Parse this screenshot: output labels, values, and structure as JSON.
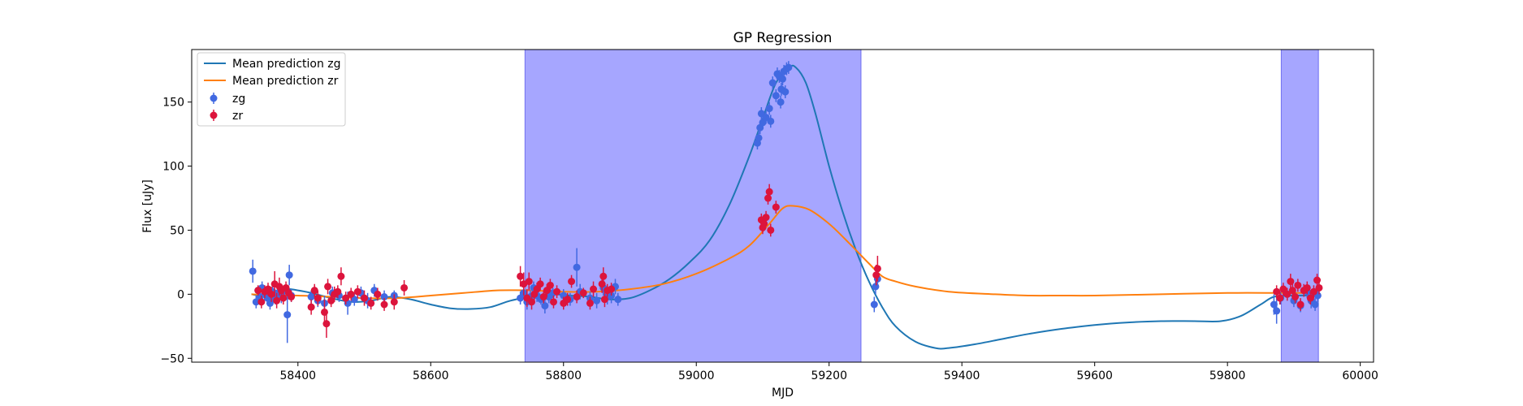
{
  "chart_data": {
    "type": "scatter",
    "title": "GP Regression",
    "xlabel": "MJD",
    "ylabel": "Flux [uJy]",
    "xlim": [
      58240,
      60020
    ],
    "ylim": [
      -53,
      191
    ],
    "xticks": [
      58400,
      58600,
      58800,
      59000,
      59200,
      59400,
      59600,
      59800,
      60000
    ],
    "yticks": [
      -50,
      0,
      50,
      100,
      150
    ],
    "grid": false,
    "legend_position": "upper-left",
    "shaded_regions": [
      {
        "x0": 58742,
        "x1": 59248,
        "color": "#a6a6ff"
      },
      {
        "x0": 59881,
        "x1": 59937,
        "color": "#a6a6ff"
      }
    ],
    "lines": [
      {
        "name": "Mean prediction zg",
        "color": "#1f77b4",
        "points": [
          [
            58330,
            0
          ],
          [
            58350,
            -1
          ],
          [
            58380,
            4
          ],
          [
            58400,
            3
          ],
          [
            58420,
            1
          ],
          [
            58450,
            -3
          ],
          [
            58480,
            -6
          ],
          [
            58510,
            -5
          ],
          [
            58540,
            -2
          ],
          [
            58570,
            -4
          ],
          [
            58600,
            -8
          ],
          [
            58630,
            -11
          ],
          [
            58660,
            -11.5
          ],
          [
            58690,
            -10
          ],
          [
            58720,
            -5
          ],
          [
            58750,
            -2
          ],
          [
            58780,
            0
          ],
          [
            58810,
            -1
          ],
          [
            58840,
            -2
          ],
          [
            58870,
            -4
          ],
          [
            58900,
            -3
          ],
          [
            58930,
            3
          ],
          [
            58960,
            12
          ],
          [
            58990,
            25
          ],
          [
            59020,
            42
          ],
          [
            59050,
            70
          ],
          [
            59080,
            108
          ],
          [
            59100,
            137
          ],
          [
            59120,
            165
          ],
          [
            59140,
            177
          ],
          [
            59150,
            177
          ],
          [
            59165,
            165
          ],
          [
            59180,
            140
          ],
          [
            59200,
            100
          ],
          [
            59220,
            65
          ],
          [
            59240,
            35
          ],
          [
            59260,
            10
          ],
          [
            59280,
            -10
          ],
          [
            59300,
            -25
          ],
          [
            59330,
            -37
          ],
          [
            59360,
            -42
          ],
          [
            59380,
            -42
          ],
          [
            59420,
            -39
          ],
          [
            59460,
            -35
          ],
          [
            59500,
            -31
          ],
          [
            59550,
            -27
          ],
          [
            59600,
            -24
          ],
          [
            59650,
            -22
          ],
          [
            59700,
            -21
          ],
          [
            59750,
            -21
          ],
          [
            59790,
            -21
          ],
          [
            59820,
            -17
          ],
          [
            59850,
            -8
          ],
          [
            59870,
            -2
          ],
          [
            59900,
            -1
          ],
          [
            59935,
            -1
          ]
        ]
      },
      {
        "name": "Mean prediction zr",
        "color": "#ff7f0e",
        "points": [
          [
            58330,
            0
          ],
          [
            58370,
            -1
          ],
          [
            58400,
            -1
          ],
          [
            58450,
            -2
          ],
          [
            58500,
            -3
          ],
          [
            58550,
            -3
          ],
          [
            58600,
            -1
          ],
          [
            58650,
            1
          ],
          [
            58700,
            3
          ],
          [
            58750,
            3
          ],
          [
            58800,
            2
          ],
          [
            58850,
            2
          ],
          [
            58900,
            4
          ],
          [
            58950,
            8
          ],
          [
            59000,
            16
          ],
          [
            59050,
            28
          ],
          [
            59080,
            38
          ],
          [
            59110,
            55
          ],
          [
            59130,
            67
          ],
          [
            59145,
            69
          ],
          [
            59170,
            66
          ],
          [
            59200,
            55
          ],
          [
            59230,
            40
          ],
          [
            59260,
            24
          ],
          [
            59280,
            14
          ],
          [
            59300,
            10
          ],
          [
            59330,
            6
          ],
          [
            59380,
            2
          ],
          [
            59450,
            0
          ],
          [
            59500,
            -1
          ],
          [
            59550,
            -1
          ],
          [
            59600,
            -1
          ],
          [
            59700,
            0
          ],
          [
            59800,
            1
          ],
          [
            59880,
            1
          ],
          [
            59935,
            1
          ]
        ]
      }
    ],
    "series": [
      {
        "name": "zg",
        "color": "#4169e1",
        "points": [
          [
            58332,
            18,
            9
          ],
          [
            58337,
            -6,
            5
          ],
          [
            58340,
            3,
            4
          ],
          [
            58343,
            -2,
            4
          ],
          [
            58346,
            5,
            5
          ],
          [
            58350,
            0,
            4
          ],
          [
            58354,
            -3,
            5
          ],
          [
            58358,
            -7,
            5
          ],
          [
            58362,
            2,
            5
          ],
          [
            58366,
            -4,
            4
          ],
          [
            58370,
            1,
            4
          ],
          [
            58375,
            -2,
            5
          ],
          [
            58380,
            3,
            4
          ],
          [
            58384,
            -16,
            22
          ],
          [
            58387,
            15,
            8
          ],
          [
            58390,
            -1,
            5
          ],
          [
            58420,
            -2,
            5
          ],
          [
            58430,
            -5,
            5
          ],
          [
            58440,
            -7,
            6
          ],
          [
            58452,
            1,
            5
          ],
          [
            58462,
            -1,
            5
          ],
          [
            58475,
            -7,
            9
          ],
          [
            58485,
            -4,
            5
          ],
          [
            58495,
            1,
            5
          ],
          [
            58505,
            -5,
            6
          ],
          [
            58515,
            3,
            5
          ],
          [
            58530,
            -2,
            5
          ],
          [
            58545,
            -1,
            4
          ],
          [
            58735,
            -3,
            5
          ],
          [
            58740,
            1,
            5
          ],
          [
            58745,
            -6,
            6
          ],
          [
            58750,
            -2,
            5
          ],
          [
            58755,
            5,
            5
          ],
          [
            58760,
            -1,
            5
          ],
          [
            58766,
            -4,
            4
          ],
          [
            58772,
            -9,
            6
          ],
          [
            58778,
            -2,
            5
          ],
          [
            58784,
            1,
            4
          ],
          [
            58800,
            -1,
            5
          ],
          [
            58810,
            -4,
            5
          ],
          [
            58820,
            21,
            15
          ],
          [
            58825,
            2,
            6
          ],
          [
            58840,
            -3,
            5
          ],
          [
            58850,
            -5,
            6
          ],
          [
            58860,
            5,
            6
          ],
          [
            58866,
            -2,
            6
          ],
          [
            58872,
            -1,
            6
          ],
          [
            58878,
            6,
            6
          ],
          [
            58882,
            -4,
            5
          ],
          [
            59092,
            118,
            5
          ],
          [
            59094,
            122,
            5
          ],
          [
            59096,
            130,
            5
          ],
          [
            59098,
            141,
            5
          ],
          [
            59100,
            134,
            5
          ],
          [
            59105,
            138,
            5
          ],
          [
            59110,
            145,
            5
          ],
          [
            59112,
            135,
            5
          ],
          [
            59115,
            165,
            5
          ],
          [
            59120,
            155,
            5
          ],
          [
            59122,
            172,
            5
          ],
          [
            59125,
            170,
            5
          ],
          [
            59127,
            150,
            5
          ],
          [
            59128,
            160,
            5
          ],
          [
            59130,
            168,
            5
          ],
          [
            59132,
            174,
            5
          ],
          [
            59134,
            158,
            5
          ],
          [
            59136,
            176,
            5
          ],
          [
            59139,
            177,
            5
          ],
          [
            59268,
            -8,
            6
          ],
          [
            59270,
            6,
            6
          ],
          [
            59273,
            12,
            7
          ],
          [
            59870,
            -8,
            8
          ],
          [
            59874,
            -13,
            10
          ],
          [
            59880,
            -3,
            5
          ],
          [
            59890,
            0,
            5
          ],
          [
            59900,
            -5,
            5
          ],
          [
            59910,
            -9,
            5
          ],
          [
            59920,
            2,
            5
          ],
          [
            59926,
            -5,
            6
          ],
          [
            59932,
            -8,
            5
          ],
          [
            59936,
            -1,
            5
          ]
        ]
      },
      {
        "name": "zr",
        "color": "#dc143c",
        "points": [
          [
            58340,
            3,
            4
          ],
          [
            58345,
            -6,
            5
          ],
          [
            58350,
            2,
            5
          ],
          [
            58355,
            4,
            5
          ],
          [
            58360,
            0,
            6
          ],
          [
            58365,
            8,
            10
          ],
          [
            58368,
            -5,
            6
          ],
          [
            58372,
            6,
            7
          ],
          [
            58375,
            3,
            5
          ],
          [
            58378,
            -3,
            5
          ],
          [
            58382,
            5,
            5
          ],
          [
            58386,
            1,
            5
          ],
          [
            58390,
            -2,
            4
          ],
          [
            58420,
            -10,
            6
          ],
          [
            58425,
            3,
            5
          ],
          [
            58430,
            -3,
            6
          ],
          [
            58440,
            -14,
            10
          ],
          [
            58443,
            -23,
            11
          ],
          [
            58445,
            6,
            6
          ],
          [
            58450,
            -5,
            5
          ],
          [
            58455,
            0,
            6
          ],
          [
            58460,
            2,
            5
          ],
          [
            58465,
            14,
            7
          ],
          [
            58472,
            -3,
            5
          ],
          [
            58480,
            0,
            5
          ],
          [
            58490,
            2,
            5
          ],
          [
            58500,
            -3,
            6
          ],
          [
            58510,
            -7,
            5
          ],
          [
            58520,
            0,
            5
          ],
          [
            58530,
            -8,
            5
          ],
          [
            58545,
            -6,
            6
          ],
          [
            58560,
            5,
            6
          ],
          [
            58735,
            14,
            8
          ],
          [
            58740,
            8,
            9
          ],
          [
            58745,
            -3,
            7
          ],
          [
            58748,
            10,
            7
          ],
          [
            58752,
            -6,
            6
          ],
          [
            58756,
            0,
            5
          ],
          [
            58760,
            4,
            5
          ],
          [
            58765,
            8,
            5
          ],
          [
            58770,
            -2,
            5
          ],
          [
            58775,
            3,
            5
          ],
          [
            58780,
            7,
            5
          ],
          [
            58785,
            -6,
            5
          ],
          [
            58790,
            2,
            5
          ],
          [
            58800,
            -7,
            5
          ],
          [
            58806,
            -4,
            5
          ],
          [
            58812,
            10,
            5
          ],
          [
            58820,
            -2,
            5
          ],
          [
            58830,
            1,
            4
          ],
          [
            58840,
            -7,
            5
          ],
          [
            58845,
            4,
            6
          ],
          [
            58858,
            8,
            7
          ],
          [
            58860,
            14,
            7
          ],
          [
            58862,
            -4,
            6
          ],
          [
            58866,
            3,
            5
          ],
          [
            58872,
            4,
            5
          ],
          [
            59098,
            58,
            5
          ],
          [
            59100,
            52,
            5
          ],
          [
            59102,
            55,
            5
          ],
          [
            59105,
            60,
            5
          ],
          [
            59108,
            75,
            5
          ],
          [
            59110,
            80,
            6
          ],
          [
            59112,
            50,
            5
          ],
          [
            59120,
            68,
            5
          ],
          [
            59271,
            15,
            8
          ],
          [
            59273,
            20,
            10
          ],
          [
            59874,
            2,
            5
          ],
          [
            59879,
            -3,
            5
          ],
          [
            59884,
            4,
            5
          ],
          [
            59890,
            0,
            5
          ],
          [
            59895,
            10,
            6
          ],
          [
            59898,
            3,
            6
          ],
          [
            59902,
            -2,
            5
          ],
          [
            59906,
            7,
            5
          ],
          [
            59910,
            -8,
            5
          ],
          [
            59915,
            3,
            5
          ],
          [
            59920,
            5,
            5
          ],
          [
            59925,
            -3,
            5
          ],
          [
            59930,
            2,
            5
          ],
          [
            59935,
            11,
            5
          ],
          [
            59938,
            5,
            5
          ]
        ]
      }
    ]
  }
}
